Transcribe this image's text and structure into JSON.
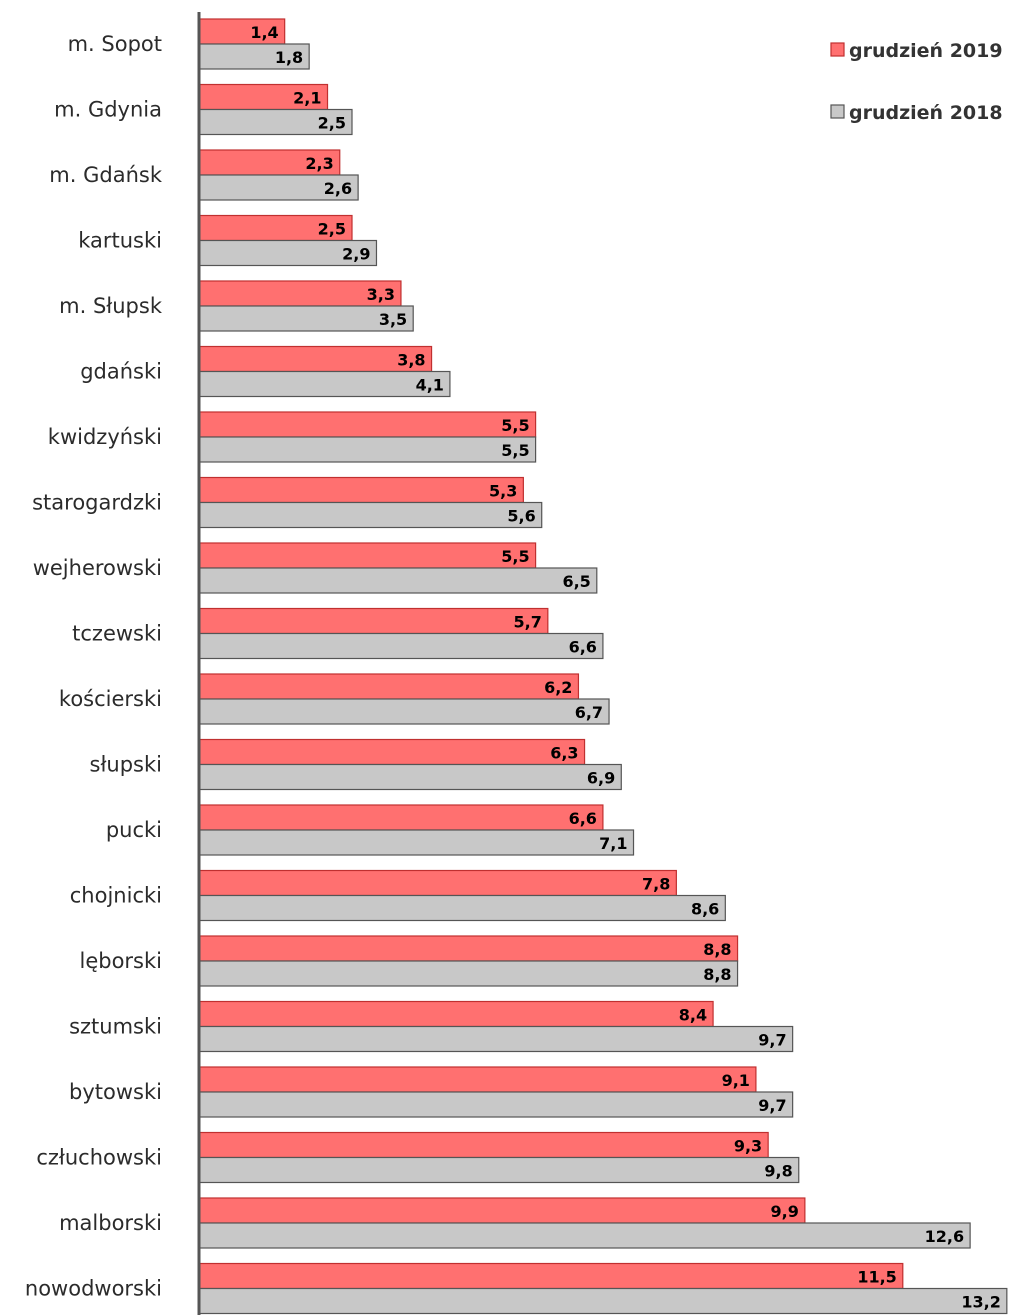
{
  "chart_data": {
    "type": "bar",
    "orientation": "horizontal",
    "categories": [
      "m. Sopot",
      "m. Gdynia",
      "m. Gdańsk",
      "kartuski",
      "m. Słupsk",
      "gdański",
      "kwidzyński",
      "starogardzki",
      "wejherowski",
      "tczewski",
      "kościerski",
      "słupski",
      "pucki",
      "chojnicki",
      "lęborski",
      "sztumski",
      "bytowski",
      "człuchowski",
      "malborski",
      "nowodworski"
    ],
    "series": [
      {
        "name": "grudzień 2019",
        "color": "#ff7070",
        "values": [
          1.4,
          2.1,
          2.3,
          2.5,
          3.3,
          3.8,
          5.5,
          5.3,
          5.5,
          5.7,
          6.2,
          6.3,
          6.6,
          7.8,
          8.8,
          8.4,
          9.1,
          9.3,
          9.9,
          11.5
        ],
        "labels": [
          "1,4",
          "2,1",
          "2,3",
          "2,5",
          "3,3",
          "3,8",
          "5,5",
          "5,3",
          "5,5",
          "5,7",
          "6,2",
          "6,3",
          "6,6",
          "7,8",
          "8,8",
          "8,4",
          "9,1",
          "9,3",
          "9,9",
          "11,5"
        ]
      },
      {
        "name": "grudzień 2018",
        "color": "#c8c8c8",
        "values": [
          1.8,
          2.5,
          2.6,
          2.9,
          3.5,
          4.1,
          5.5,
          5.6,
          6.5,
          6.6,
          6.7,
          6.9,
          7.1,
          8.6,
          8.8,
          9.7,
          9.7,
          9.8,
          12.6,
          13.2
        ],
        "labels": [
          "1,8",
          "2,5",
          "2,6",
          "2,9",
          "3,5",
          "4,1",
          "5,5",
          "5,6",
          "6,5",
          "6,6",
          "6,7",
          "6,9",
          "7,1",
          "8,6",
          "8,8",
          "9,7",
          "9,7",
          "9,8",
          "12,6",
          "13,2"
        ]
      }
    ],
    "xlim": [
      0,
      13.2
    ],
    "grid": false,
    "legend_position": "top-right",
    "title": "",
    "xlabel": "",
    "ylabel": ""
  }
}
